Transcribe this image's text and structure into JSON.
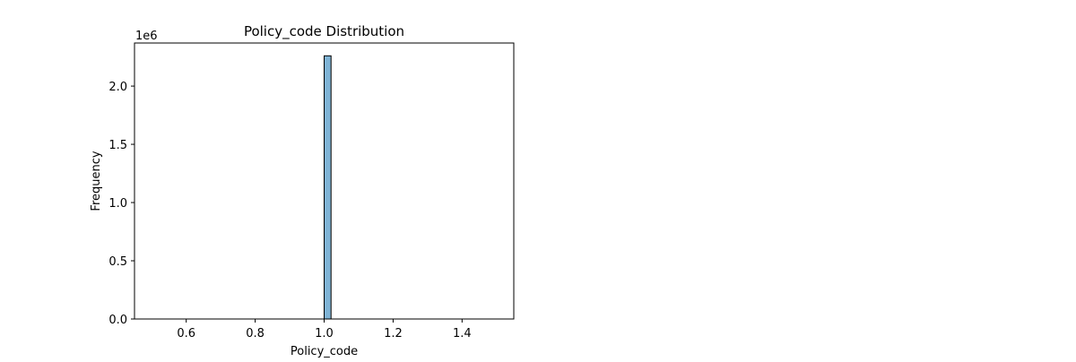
{
  "chart_data": {
    "type": "bar",
    "title": "Policy_code Distribution",
    "xlabel": "Policy_code",
    "ylabel": "Frequency",
    "y_offset_label": "1e6",
    "xlim": [
      0.45,
      1.55
    ],
    "ylim": [
      0,
      2.37
    ],
    "x_ticks": [
      0.6,
      0.8,
      1.0,
      1.2,
      1.4
    ],
    "x_tick_labels": [
      "0.6",
      "0.8",
      "1.0",
      "1.2",
      "1.4"
    ],
    "y_ticks": [
      0.0,
      0.5,
      1.0,
      1.5,
      2.0
    ],
    "y_tick_labels": [
      "0.0",
      "0.5",
      "1.0",
      "1.5",
      "2.0"
    ],
    "grid": false,
    "bars": [
      {
        "x0": 1.0,
        "x1": 1.02,
        "value": 2.26
      }
    ],
    "bar_color": "#7fb3d5",
    "bar_edge_color": "#000000"
  }
}
